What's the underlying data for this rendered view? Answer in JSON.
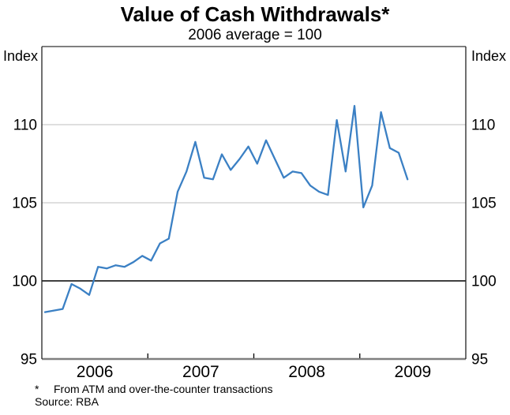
{
  "chart_data": {
    "type": "line",
    "title": "Value of Cash Withdrawals*",
    "subtitle": "2006 average = 100",
    "y_axis_label_left": "Index",
    "y_axis_label_right": "Index",
    "ylim": [
      95,
      115
    ],
    "yticks": [
      95,
      100,
      105,
      110
    ],
    "gridline_values": [
      105,
      110
    ],
    "reference_line_value": 100,
    "x_labels": [
      "2006",
      "2007",
      "2008",
      "2009"
    ],
    "x_tick_year_boundaries": [
      "2007",
      "2008",
      "2009"
    ],
    "legend_position": "none",
    "grid": "horizontal-only",
    "series": [
      {
        "name": "Value of cash withdrawals index",
        "frequency": "monthly",
        "start": "2006-01",
        "end": "2009-06",
        "color": "#3b80c4",
        "values": [
          98.0,
          98.1,
          98.2,
          99.8,
          99.5,
          99.1,
          100.9,
          100.8,
          101.0,
          100.9,
          101.2,
          101.6,
          101.3,
          102.4,
          102.7,
          105.7,
          107.0,
          108.9,
          106.6,
          106.5,
          108.1,
          107.1,
          107.8,
          108.6,
          107.5,
          109.0,
          107.8,
          106.6,
          107.0,
          106.9,
          106.1,
          105.7,
          105.5,
          110.3,
          107.0,
          111.2,
          104.7,
          106.1,
          110.8,
          108.5,
          108.2,
          106.5
        ]
      }
    ],
    "footnote_marker": "*",
    "footnote_text": "From ATM and over-the-counter transactions",
    "source": "Source: RBA",
    "colors": {
      "line": "#3b80c4",
      "gridline": "#cccccc",
      "axis_frame_horizontal": "#7f7f7f",
      "axis_frame_vertical": "#222222",
      "reference_line": "#000000",
      "text": "#000000"
    }
  }
}
